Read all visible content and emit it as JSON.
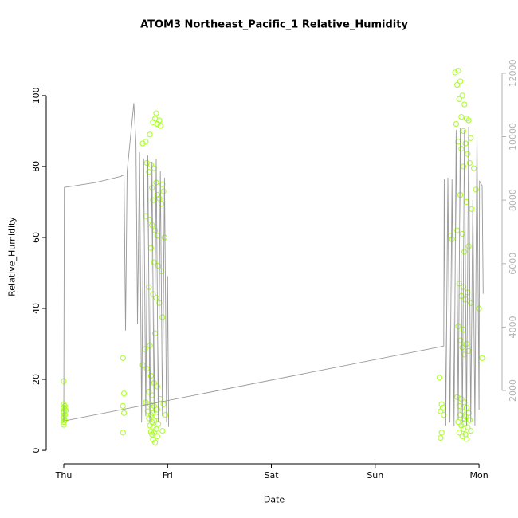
{
  "chart_data": {
    "type": "scatter",
    "title": "ATOM3 Northeast_Pacific_1 Relative_Humidity",
    "xlabel": "Date",
    "ylabel": "Relative_Humidity",
    "x_ticks": [
      {
        "value": 0,
        "label": "Thu"
      },
      {
        "value": 1,
        "label": "Fri"
      },
      {
        "value": 2,
        "label": "Sat"
      },
      {
        "value": 3,
        "label": "Sun"
      },
      {
        "value": 4,
        "label": "Mon"
      }
    ],
    "x_range": [
      -0.169,
      4.222
    ],
    "y_left": {
      "label": "Relative_Humidity",
      "ticks": [
        0,
        20,
        40,
        60,
        80,
        100
      ],
      "range": [
        -3.8,
        113
      ],
      "color": "#000000"
    },
    "y_right": {
      "ticks": [
        2000,
        4000,
        6000,
        8000,
        10000,
        12000
      ],
      "range": [
        -310,
        12750
      ],
      "color": "#b3b3b3"
    },
    "grid": false,
    "legend": "none",
    "series": [
      {
        "name": "relative_humidity_points",
        "type": "scatter",
        "axis": "left",
        "color": "#ADFF2F",
        "marker": "open-circle",
        "points": [
          [
            0.0,
            19.5
          ],
          [
            0.0,
            13.0
          ],
          [
            0.01,
            12.5
          ],
          [
            0.0,
            12.0
          ],
          [
            0.01,
            11.5
          ],
          [
            0.0,
            11.0
          ],
          [
            0.02,
            11.2
          ],
          [
            0.0,
            10.5
          ],
          [
            0.01,
            10.0
          ],
          [
            0.0,
            9.5
          ],
          [
            0.0,
            9.0
          ],
          [
            0.01,
            8.5
          ],
          [
            0.0,
            8.0
          ],
          [
            0.0,
            7.2
          ],
          [
            0.57,
            26.0
          ],
          [
            0.58,
            16.0
          ],
          [
            0.57,
            12.5
          ],
          [
            0.58,
            10.5
          ],
          [
            0.57,
            5.0
          ],
          [
            0.76,
            86.5
          ],
          [
            0.79,
            87.0
          ],
          [
            0.83,
            89.0
          ],
          [
            0.86,
            92.5
          ],
          [
            0.88,
            93.5
          ],
          [
            0.9,
            92.0
          ],
          [
            0.92,
            93.0
          ],
          [
            0.93,
            91.5
          ],
          [
            0.89,
            95.0
          ],
          [
            0.8,
            81.0
          ],
          [
            0.84,
            80.5
          ],
          [
            0.87,
            79.5
          ],
          [
            0.82,
            78.5
          ],
          [
            0.89,
            75.5
          ],
          [
            0.95,
            75.0
          ],
          [
            0.85,
            74.0
          ],
          [
            0.96,
            73.0
          ],
          [
            0.9,
            72.0
          ],
          [
            0.92,
            71.0
          ],
          [
            0.86,
            70.5
          ],
          [
            0.94,
            69.5
          ],
          [
            0.79,
            66.0
          ],
          [
            0.83,
            65.0
          ],
          [
            0.85,
            63.5
          ],
          [
            0.88,
            62.0
          ],
          [
            0.97,
            60.0
          ],
          [
            0.9,
            60.5
          ],
          [
            0.84,
            57.0
          ],
          [
            0.87,
            53.0
          ],
          [
            0.91,
            52.0
          ],
          [
            0.94,
            50.5
          ],
          [
            0.82,
            46.0
          ],
          [
            0.86,
            44.0
          ],
          [
            0.89,
            43.0
          ],
          [
            0.92,
            41.5
          ],
          [
            0.95,
            37.5
          ],
          [
            0.78,
            28.5
          ],
          [
            0.83,
            29.5
          ],
          [
            0.88,
            33.0
          ],
          [
            0.76,
            24.0
          ],
          [
            0.8,
            23.0
          ],
          [
            0.84,
            21.0
          ],
          [
            0.87,
            19.0
          ],
          [
            0.9,
            18.0
          ],
          [
            0.82,
            16.5
          ],
          [
            0.85,
            15.5
          ],
          [
            0.93,
            14.5
          ],
          [
            0.79,
            13.5
          ],
          [
            0.83,
            13.0
          ],
          [
            0.96,
            13.0
          ],
          [
            0.87,
            12.5
          ],
          [
            0.85,
            12.0
          ],
          [
            0.9,
            11.5
          ],
          [
            0.81,
            11.0
          ],
          [
            0.86,
            10.5
          ],
          [
            0.98,
            10.0
          ],
          [
            0.84,
            10.0
          ],
          [
            0.89,
            9.5
          ],
          [
            0.82,
            9.0
          ],
          [
            0.87,
            8.5
          ],
          [
            0.85,
            8.0
          ],
          [
            0.91,
            7.5
          ],
          [
            0.83,
            7.0
          ],
          [
            0.86,
            6.5
          ],
          [
            0.89,
            6.0
          ],
          [
            0.95,
            5.5
          ],
          [
            0.84,
            5.2
          ],
          [
            0.87,
            5.0
          ],
          [
            0.85,
            4.5
          ],
          [
            0.9,
            4.0
          ],
          [
            0.86,
            3.0
          ],
          [
            0.88,
            2.2
          ],
          [
            3.62,
            20.5
          ],
          [
            3.64,
            13.0
          ],
          [
            3.65,
            12.0
          ],
          [
            3.63,
            11.0
          ],
          [
            3.66,
            10.0
          ],
          [
            3.64,
            5.0
          ],
          [
            3.63,
            3.5
          ],
          [
            3.8,
            107.0
          ],
          [
            3.77,
            106.5
          ],
          [
            3.82,
            104.0
          ],
          [
            3.79,
            103.0
          ],
          [
            3.84,
            100.0
          ],
          [
            3.81,
            99.0
          ],
          [
            3.86,
            97.5
          ],
          [
            3.83,
            94.0
          ],
          [
            3.88,
            93.5
          ],
          [
            3.9,
            93.0
          ],
          [
            3.78,
            92.0
          ],
          [
            3.85,
            90.0
          ],
          [
            3.92,
            88.0
          ],
          [
            3.8,
            87.0
          ],
          [
            3.87,
            86.5
          ],
          [
            3.83,
            85.0
          ],
          [
            3.89,
            83.5
          ],
          [
            3.91,
            81.0
          ],
          [
            3.85,
            80.0
          ],
          [
            3.95,
            79.5
          ],
          [
            3.97,
            73.5
          ],
          [
            3.82,
            72.0
          ],
          [
            3.88,
            70.0
          ],
          [
            3.93,
            68.0
          ],
          [
            3.79,
            62.0
          ],
          [
            3.84,
            61.0
          ],
          [
            3.72,
            60.5
          ],
          [
            3.74,
            59.5
          ],
          [
            3.9,
            57.5
          ],
          [
            3.86,
            56.0
          ],
          [
            3.81,
            47.0
          ],
          [
            3.85,
            46.0
          ],
          [
            3.89,
            44.5
          ],
          [
            3.83,
            43.5
          ],
          [
            3.87,
            42.5
          ],
          [
            3.92,
            41.5
          ],
          [
            4.0,
            40.0
          ],
          [
            3.8,
            35.0
          ],
          [
            3.85,
            34.0
          ],
          [
            3.82,
            31.0
          ],
          [
            3.88,
            30.0
          ],
          [
            3.84,
            29.0
          ],
          [
            3.9,
            28.0
          ],
          [
            3.86,
            27.0
          ],
          [
            4.03,
            26.0
          ],
          [
            3.79,
            15.0
          ],
          [
            3.83,
            14.5
          ],
          [
            3.86,
            13.5
          ],
          [
            3.81,
            12.5
          ],
          [
            3.88,
            12.0
          ],
          [
            3.84,
            11.0
          ],
          [
            3.9,
            10.5
          ],
          [
            3.82,
            10.0
          ],
          [
            3.87,
            9.5
          ],
          [
            3.85,
            9.0
          ],
          [
            3.91,
            8.5
          ],
          [
            3.8,
            8.0
          ],
          [
            3.86,
            7.5
          ],
          [
            3.83,
            7.0
          ],
          [
            3.89,
            6.5
          ],
          [
            3.85,
            6.0
          ],
          [
            3.92,
            5.5
          ],
          [
            3.81,
            5.0
          ],
          [
            3.87,
            4.5
          ],
          [
            3.84,
            4.0
          ],
          [
            3.88,
            3.2
          ]
        ]
      },
      {
        "name": "altitude_trace_line",
        "type": "line",
        "axis": "right",
        "color": "#999999",
        "segments": [
          [
            [
              0.0,
              1000
            ],
            [
              0.005,
              8400
            ],
            [
              0.3,
              8550
            ],
            [
              0.55,
              8750
            ],
            [
              0.58,
              8800
            ],
            [
              0.595,
              3900
            ],
            [
              0.61,
              8900
            ],
            [
              0.675,
              11050
            ],
            [
              0.695,
              9800
            ],
            [
              0.71,
              4100
            ],
            [
              0.73,
              9500
            ],
            [
              0.75,
              1000
            ],
            [
              0.77,
              9300
            ],
            [
              0.79,
              1200
            ],
            [
              0.81,
              9400
            ],
            [
              0.83,
              1000
            ],
            [
              0.85,
              9200
            ],
            [
              0.87,
              1300
            ],
            [
              0.89,
              9300
            ],
            [
              0.91,
              1000
            ],
            [
              0.93,
              8900
            ],
            [
              0.95,
              1200
            ],
            [
              0.97,
              8700
            ],
            [
              0.99,
              1000
            ],
            [
              1.0,
              5600
            ],
            [
              1.01,
              850
            ]
          ],
          [
            [
              0.02,
              1050
            ],
            [
              3.66,
              3400
            ]
          ],
          [
            [
              3.66,
              3400
            ],
            [
              3.665,
              8650
            ],
            [
              3.68,
              900
            ],
            [
              3.7,
              8700
            ],
            [
              3.72,
              1000
            ],
            [
              3.74,
              8650
            ],
            [
              3.76,
              900
            ],
            [
              3.78,
              10200
            ],
            [
              3.8,
              1100
            ],
            [
              3.82,
              10250
            ],
            [
              3.84,
              1000
            ],
            [
              3.86,
              10200
            ],
            [
              3.88,
              900
            ],
            [
              3.9,
              10300
            ],
            [
              3.92,
              1000
            ],
            [
              3.94,
              8000
            ],
            [
              3.96,
              900
            ],
            [
              3.98,
              10200
            ],
            [
              4.0,
              1400
            ],
            [
              4.005,
              8600
            ],
            [
              4.03,
              8450
            ],
            [
              4.04,
              5050
            ]
          ]
        ]
      }
    ]
  }
}
